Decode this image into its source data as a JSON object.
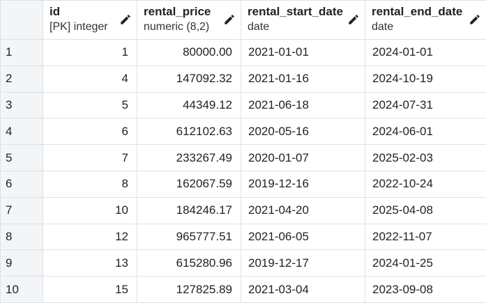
{
  "columns": [
    {
      "name": "id",
      "type": "[PK] integer"
    },
    {
      "name": "rental_price",
      "type": "numeric (8,2)"
    },
    {
      "name": "rental_start_date",
      "type": "date"
    },
    {
      "name": "rental_end_date",
      "type": "date"
    }
  ],
  "rows": [
    {
      "num": "1",
      "id": "1",
      "price": "80000.00",
      "start": "2021-01-01",
      "end": "2024-01-01"
    },
    {
      "num": "2",
      "id": "4",
      "price": "147092.32",
      "start": "2021-01-16",
      "end": "2024-10-19"
    },
    {
      "num": "3",
      "id": "5",
      "price": "44349.12",
      "start": "2021-06-18",
      "end": "2024-07-31"
    },
    {
      "num": "4",
      "id": "6",
      "price": "612102.63",
      "start": "2020-05-16",
      "end": "2024-06-01"
    },
    {
      "num": "5",
      "id": "7",
      "price": "233267.49",
      "start": "2020-01-07",
      "end": "2025-02-03"
    },
    {
      "num": "6",
      "id": "8",
      "price": "162067.59",
      "start": "2019-12-16",
      "end": "2022-10-24"
    },
    {
      "num": "7",
      "id": "10",
      "price": "184246.17",
      "start": "2021-04-20",
      "end": "2025-04-08"
    },
    {
      "num": "8",
      "id": "12",
      "price": "965777.51",
      "start": "2021-06-05",
      "end": "2022-11-07"
    },
    {
      "num": "9",
      "id": "13",
      "price": "615280.96",
      "start": "2019-12-17",
      "end": "2024-01-25"
    },
    {
      "num": "10",
      "id": "15",
      "price": "127825.89",
      "start": "2021-03-04",
      "end": "2023-09-08"
    }
  ],
  "icons": {
    "edit": "pencil-icon"
  }
}
